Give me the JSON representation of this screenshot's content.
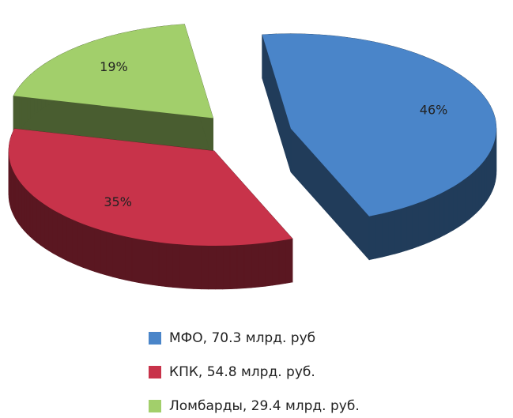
{
  "chart_data": {
    "type": "pie",
    "categories": [
      "МФО, 70.3 млрд. руб",
      "КПК, 54.8 млрд. руб.",
      "Ломбарды, 29.4 млрд. руб."
    ],
    "values": [
      46,
      35,
      19
    ],
    "value_labels": [
      "46%",
      "35%",
      "19%"
    ],
    "colors": [
      "#4a85c9",
      "#c8334a",
      "#a2cf6b"
    ],
    "legend": "bottom"
  }
}
